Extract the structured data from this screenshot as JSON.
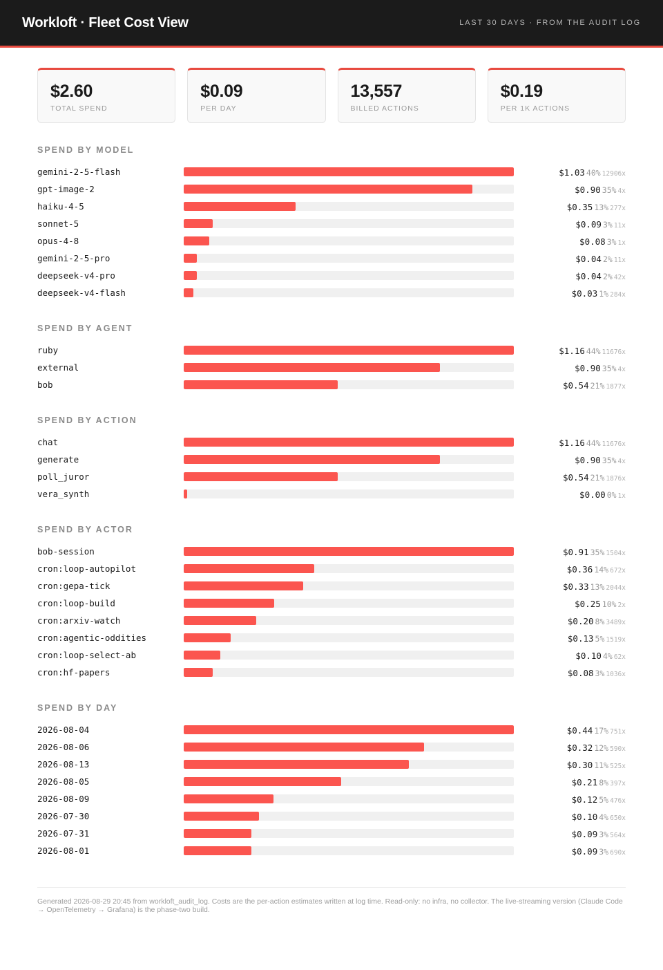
{
  "header": {
    "title": "Workloft · Fleet Cost View",
    "period": "LAST 30 DAYS · FROM THE AUDIT LOG"
  },
  "cards": [
    {
      "value": "$2.60",
      "label": "TOTAL SPEND"
    },
    {
      "value": "$0.09",
      "label": "PER DAY"
    },
    {
      "value": "13,557",
      "label": "BILLED ACTIONS"
    },
    {
      "value": "$0.19",
      "label": "PER 1K ACTIONS"
    }
  ],
  "colors": {
    "accent": "#e84a3f",
    "bar": "#fb554f",
    "track": "#f0f0f0",
    "header_bg": "#1b1b1b"
  },
  "chart_data": [
    {
      "type": "bar",
      "title": "SPEND BY MODEL",
      "categories": [
        "gemini-2-5-flash",
        "gpt-image-2",
        "haiku-4-5",
        "sonnet-5",
        "opus-4-8",
        "gemini-2-5-pro",
        "deepseek-v4-pro",
        "deepseek-v4-flash"
      ],
      "values": [
        1.03,
        0.9,
        0.35,
        0.09,
        0.08,
        0.04,
        0.04,
        0.03
      ],
      "cost_labels": [
        "$1.03",
        "$0.90",
        "$0.35",
        "$0.09",
        "$0.08",
        "$0.04",
        "$0.04",
        "$0.03"
      ],
      "pct_labels": [
        "40%",
        "35%",
        "13%",
        "3%",
        "3%",
        "2%",
        "2%",
        "1%"
      ],
      "count_labels": [
        "12906x",
        "4x",
        "277x",
        "11x",
        "1x",
        "11x",
        "42x",
        "284x"
      ]
    },
    {
      "type": "bar",
      "title": "SPEND BY AGENT",
      "categories": [
        "ruby",
        "external",
        "bob"
      ],
      "values": [
        1.16,
        0.9,
        0.54
      ],
      "cost_labels": [
        "$1.16",
        "$0.90",
        "$0.54"
      ],
      "pct_labels": [
        "44%",
        "35%",
        "21%"
      ],
      "count_labels": [
        "11676x",
        "4x",
        "1877x"
      ]
    },
    {
      "type": "bar",
      "title": "SPEND BY ACTION",
      "categories": [
        "chat",
        "generate",
        "poll_juror",
        "vera_synth"
      ],
      "values": [
        1.16,
        0.9,
        0.54,
        0.0
      ],
      "cost_labels": [
        "$1.16",
        "$0.90",
        "$0.54",
        "$0.00"
      ],
      "pct_labels": [
        "44%",
        "35%",
        "21%",
        "0%"
      ],
      "count_labels": [
        "11676x",
        "4x",
        "1876x",
        "1x"
      ]
    },
    {
      "type": "bar",
      "title": "SPEND BY ACTOR",
      "categories": [
        "bob-session",
        "cron:loop-autopilot",
        "cron:gepa-tick",
        "cron:loop-build",
        "cron:arxiv-watch",
        "cron:agentic-oddities",
        "cron:loop-select-ab",
        "cron:hf-papers"
      ],
      "values": [
        0.91,
        0.36,
        0.33,
        0.25,
        0.2,
        0.13,
        0.1,
        0.08
      ],
      "cost_labels": [
        "$0.91",
        "$0.36",
        "$0.33",
        "$0.25",
        "$0.20",
        "$0.13",
        "$0.10",
        "$0.08"
      ],
      "pct_labels": [
        "35%",
        "14%",
        "13%",
        "10%",
        "8%",
        "5%",
        "4%",
        "3%"
      ],
      "count_labels": [
        "1504x",
        "672x",
        "2044x",
        "2x",
        "3489x",
        "1519x",
        "62x",
        "1036x"
      ]
    },
    {
      "type": "bar",
      "title": "SPEND BY DAY",
      "categories": [
        "2026-08-04",
        "2026-08-06",
        "2026-08-13",
        "2026-08-05",
        "2026-08-09",
        "2026-07-30",
        "2026-07-31",
        "2026-08-01"
      ],
      "values": [
        0.44,
        0.32,
        0.3,
        0.21,
        0.12,
        0.1,
        0.09,
        0.09
      ],
      "cost_labels": [
        "$0.44",
        "$0.32",
        "$0.30",
        "$0.21",
        "$0.12",
        "$0.10",
        "$0.09",
        "$0.09"
      ],
      "pct_labels": [
        "17%",
        "12%",
        "11%",
        "8%",
        "5%",
        "4%",
        "3%",
        "3%"
      ],
      "count_labels": [
        "751x",
        "590x",
        "525x",
        "397x",
        "476x",
        "650x",
        "564x",
        "690x"
      ]
    }
  ],
  "footer": {
    "text": "Generated 2026-08-29 20:45 from workloft_audit_log. Costs are the per-action estimates written at log time. Read-only: no infra, no collector. The live-streaming version (Claude Code → OpenTelemetry → Grafana) is the phase-two build."
  }
}
